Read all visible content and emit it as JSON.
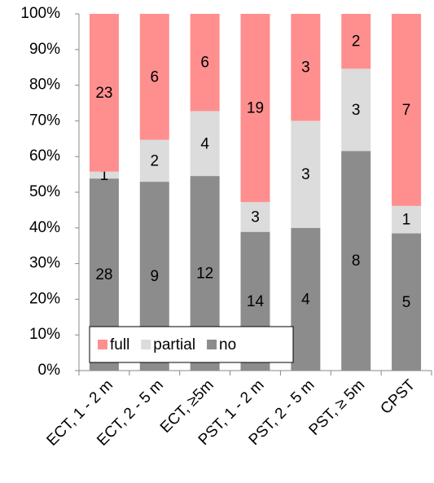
{
  "chart_data": {
    "type": "bar",
    "stacking": "percent",
    "categories": [
      "ECT, 1 - 2 m",
      "ECT, 2 - 5 m",
      "ECT, ≥5m",
      "PST, 1 - 2 m",
      "PST, 2 - 5 m",
      "PST, ≥ 5m",
      "CPST"
    ],
    "series": [
      {
        "name": "no",
        "color": "#8c8c8c",
        "values": [
          28,
          9,
          12,
          14,
          4,
          8,
          5
        ]
      },
      {
        "name": "partial",
        "color": "#dcdcdc",
        "values": [
          1,
          2,
          4,
          3,
          3,
          3,
          1
        ]
      },
      {
        "name": "full",
        "color": "#ff8f8f",
        "values": [
          23,
          6,
          6,
          19,
          3,
          2,
          7
        ]
      }
    ],
    "ylim": [
      0,
      100
    ],
    "yticks": [
      {
        "value": 0,
        "label": "0%"
      },
      {
        "value": 10,
        "label": "10%"
      },
      {
        "value": 20,
        "label": "20%"
      },
      {
        "value": 30,
        "label": "30%"
      },
      {
        "value": 40,
        "label": "40%"
      },
      {
        "value": 50,
        "label": "50%"
      },
      {
        "value": 60,
        "label": "60%"
      },
      {
        "value": 70,
        "label": "70%"
      },
      {
        "value": 80,
        "label": "80%"
      },
      {
        "value": 90,
        "label": "90%"
      },
      {
        "value": 100,
        "label": "100%"
      }
    ],
    "legend": "bottom-left"
  }
}
